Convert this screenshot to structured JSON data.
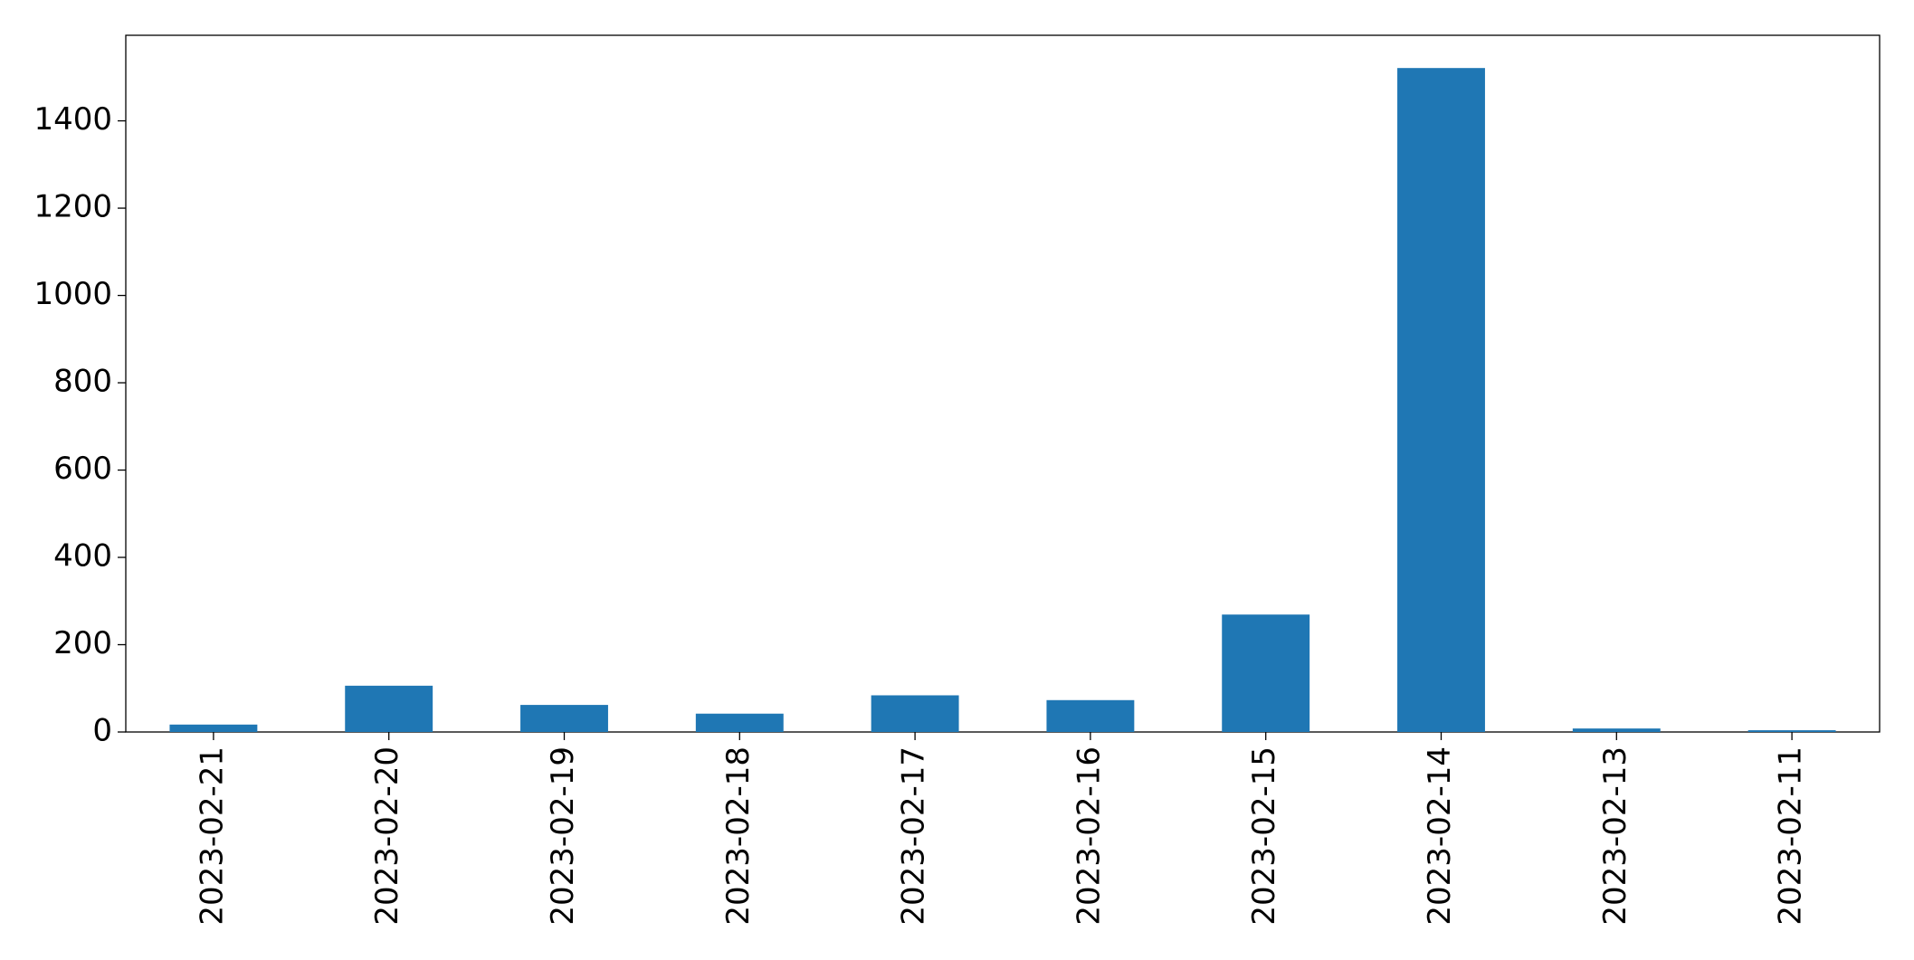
{
  "chart_data": {
    "type": "bar",
    "categories": [
      "2023-02-21",
      "2023-02-20",
      "2023-02-19",
      "2023-02-18",
      "2023-02-17",
      "2023-02-16",
      "2023-02-15",
      "2023-02-14",
      "2023-02-13",
      "2023-02-11"
    ],
    "values": [
      17,
      106,
      62,
      42,
      84,
      73,
      269,
      1521,
      8,
      4
    ],
    "color": "#1f77b4",
    "ylim": [
      0,
      1596
    ],
    "yticks": [
      0,
      200,
      400,
      600,
      800,
      1000,
      1200,
      1400
    ],
    "grid": false
  }
}
